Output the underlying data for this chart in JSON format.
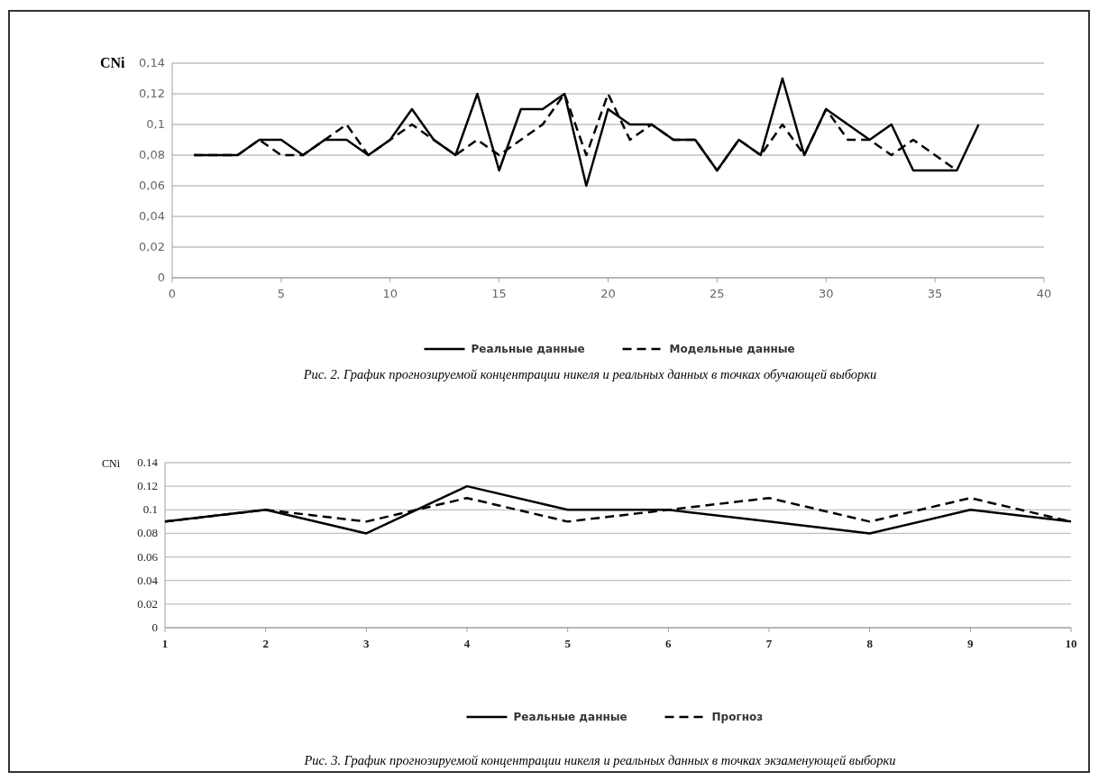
{
  "chart_data": [
    {
      "type": "line",
      "ylabel": "CNi",
      "xlim": [
        0,
        40
      ],
      "xticks": [
        0,
        5,
        10,
        15,
        20,
        25,
        30,
        35,
        40
      ],
      "ylim": [
        0,
        0.14
      ],
      "yticks": [
        {
          "value": 0,
          "label": "0"
        },
        {
          "value": 0.02,
          "label": "0,02"
        },
        {
          "value": 0.04,
          "label": "0,04"
        },
        {
          "value": 0.06,
          "label": "0,06"
        },
        {
          "value": 0.08,
          "label": "0,08"
        },
        {
          "value": 0.1,
          "label": "0,1"
        },
        {
          "value": 0.12,
          "label": "0,12"
        },
        {
          "value": 0.14,
          "label": "0,14"
        }
      ],
      "grid": "y",
      "legend": "bottom",
      "marker": "none",
      "x": [
        1,
        2,
        3,
        4,
        5,
        6,
        7,
        8,
        9,
        10,
        11,
        12,
        13,
        14,
        15,
        16,
        17,
        18,
        19,
        20,
        21,
        22,
        23,
        24,
        25,
        26,
        27,
        28,
        29,
        30,
        31,
        32,
        33,
        34,
        35,
        36,
        37
      ],
      "series": [
        {
          "name": "Реальные данные",
          "color": "#000000",
          "line_style": "solid",
          "values": [
            0.08,
            0.08,
            0.08,
            0.09,
            0.09,
            0.08,
            0.09,
            0.09,
            0.08,
            0.09,
            0.11,
            0.09,
            0.08,
            0.12,
            0.07,
            0.11,
            0.11,
            0.12,
            0.06,
            0.11,
            0.1,
            0.1,
            0.09,
            0.09,
            0.07,
            0.09,
            0.08,
            0.13,
            0.08,
            0.11,
            0.1,
            0.09,
            0.1,
            0.07,
            0.07,
            0.07,
            0.1
          ]
        },
        {
          "name": "Модельные данные",
          "color": "#000000",
          "line_style": "dashed",
          "values": [
            0.08,
            0.08,
            0.08,
            0.09,
            0.08,
            0.08,
            0.09,
            0.1,
            0.08,
            0.09,
            0.1,
            0.09,
            0.08,
            0.09,
            0.08,
            0.09,
            0.1,
            0.12,
            0.08,
            0.12,
            0.09,
            0.1,
            0.09,
            0.09,
            0.07,
            0.09,
            0.08,
            0.1,
            0.08,
            0.11,
            0.09,
            0.09,
            0.08,
            0.09,
            0.08,
            0.07,
            null
          ]
        }
      ],
      "annotations": [
        "Рис. 2. График прогнозируемой концентрации никеля и реальных данных в точках обучающей выборки"
      ]
    },
    {
      "type": "line",
      "ylabel": "CNi",
      "categories": [
        "1",
        "2",
        "3",
        "4",
        "5",
        "6",
        "7",
        "8",
        "9",
        "10"
      ],
      "ylim": [
        0,
        0.14
      ],
      "yticks": [
        0,
        0.02,
        0.04,
        0.06,
        0.08,
        0.1,
        0.12,
        0.14
      ],
      "grid": "y",
      "legend": "bottom",
      "marker": "none",
      "series": [
        {
          "name": "Реальные данные",
          "color": "#000000",
          "line_style": "solid",
          "values": [
            0.09,
            0.1,
            0.08,
            0.12,
            0.1,
            0.1,
            0.09,
            0.08,
            0.1,
            0.09
          ]
        },
        {
          "name": "Прогноз",
          "color": "#000000",
          "line_style": "dashed",
          "values": [
            0.09,
            0.1,
            0.09,
            0.11,
            0.09,
            0.1,
            0.11,
            0.09,
            0.11,
            0.09
          ]
        }
      ],
      "annotations": [
        "Рис. 3. График прогнозируемой концентрации никеля и реальных данных в точках экзаменующей выборки"
      ]
    }
  ]
}
